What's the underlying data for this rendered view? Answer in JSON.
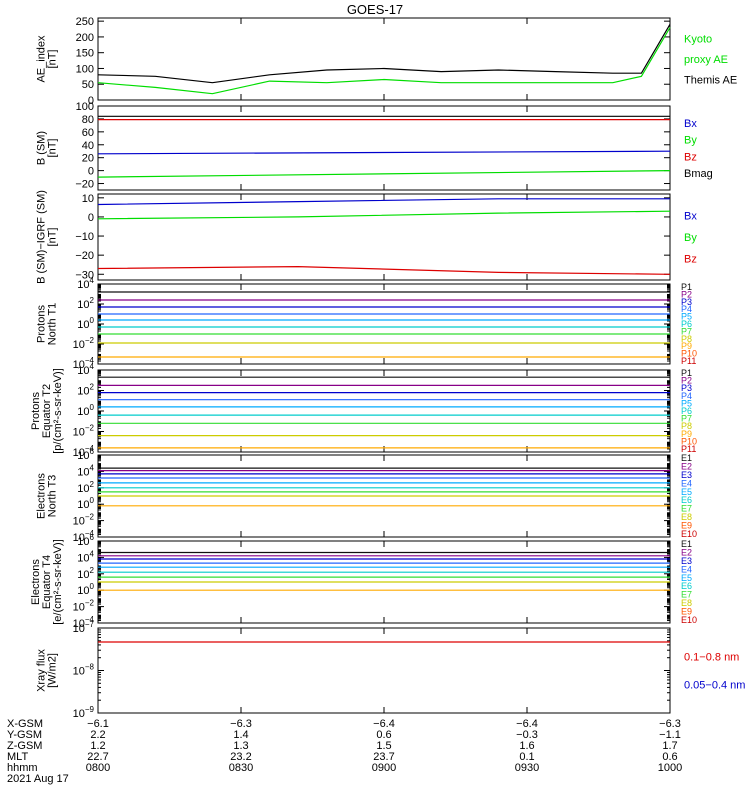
{
  "title": "GOES-17",
  "colors": {
    "black": "#000000",
    "green": "#00dd00",
    "blue": "#0000cc",
    "red": "#dd0000",
    "P1": "#111111",
    "P2": "#880088",
    "P3": "#0000cc",
    "P4": "#2266ff",
    "P5": "#00aaff",
    "P6": "#00cccc",
    "P7": "#33dd33",
    "P8": "#cccc00",
    "P9": "#ffaa00",
    "P10": "#ff5500",
    "P11": "#cc0000"
  },
  "chart_data": [
    {
      "type": "line",
      "ylabel": [
        "AE_index",
        "[nT]"
      ],
      "ylim": [
        0,
        260
      ],
      "yscale": "linear",
      "yticks": [
        "0",
        "50",
        "100",
        "150",
        "200",
        "250"
      ],
      "ytick_values": [
        0,
        50,
        100,
        150,
        200,
        250
      ],
      "x": [
        0,
        0.1,
        0.2,
        0.3,
        0.4,
        0.5,
        0.6,
        0.7,
        0.8,
        0.9,
        0.95,
        1
      ],
      "series": [
        {
          "name": "Kyoto proxy AE",
          "color": "green",
          "values": [
            55,
            40,
            20,
            60,
            55,
            65,
            55,
            55,
            55,
            55,
            75,
            230
          ]
        },
        {
          "name": "Themis AE",
          "color": "black",
          "values": [
            80,
            75,
            55,
            80,
            95,
            100,
            90,
            95,
            90,
            85,
            85,
            240
          ]
        }
      ],
      "legend": [
        {
          "text": "Kyoto",
          "color": "green"
        },
        {
          "text": "proxy AE",
          "color": "green"
        },
        {
          "text": "Themis AE",
          "color": "black"
        }
      ]
    },
    {
      "type": "line",
      "ylabel": [
        "B (SM)",
        "[nT]"
      ],
      "ylim": [
        -30,
        100
      ],
      "yscale": "linear",
      "yticks": [
        "−20",
        "0",
        "20",
        "40",
        "60",
        "80",
        "100"
      ],
      "ytick_values": [
        -20,
        0,
        20,
        40,
        60,
        80,
        100
      ],
      "x": [
        0,
        1
      ],
      "series": [
        {
          "name": "Bx",
          "color": "blue",
          "values": [
            26,
            30
          ]
        },
        {
          "name": "By",
          "color": "green",
          "values": [
            -10,
            0
          ]
        },
        {
          "name": "Bz",
          "color": "red",
          "values": [
            79,
            79
          ]
        },
        {
          "name": "Bmag",
          "color": "black",
          "values": [
            84,
            84
          ]
        }
      ],
      "legend": [
        {
          "text": "Bx",
          "color": "blue"
        },
        {
          "text": "By",
          "color": "green"
        },
        {
          "text": "Bz",
          "color": "red"
        },
        {
          "text": "Bmag",
          "color": "black"
        }
      ]
    },
    {
      "type": "line",
      "ylabel": [
        "B (SM)−IGRF (SM)",
        "[nT]"
      ],
      "ylim": [
        -33,
        12
      ],
      "yscale": "linear",
      "yticks": [
        "−30",
        "−20",
        "−10",
        "0",
        "10"
      ],
      "ytick_values": [
        -30,
        -20,
        -10,
        0,
        10
      ],
      "x": [
        0,
        0.35,
        0.7,
        1
      ],
      "series": [
        {
          "name": "Bx",
          "color": "blue",
          "values": [
            6.5,
            8,
            9.5,
            9.5
          ]
        },
        {
          "name": "By",
          "color": "green",
          "values": [
            -1,
            0,
            2,
            3
          ]
        },
        {
          "name": "Bz",
          "color": "red",
          "values": [
            -27,
            -26,
            -29,
            -30
          ]
        }
      ],
      "legend": [
        {
          "text": "Bx",
          "color": "blue"
        },
        {
          "text": "By",
          "color": "green"
        },
        {
          "text": "Bz",
          "color": "red"
        }
      ]
    },
    {
      "type": "line",
      "ylabel": [
        "Protons",
        "North T1"
      ],
      "ylim": [
        -4,
        4
      ],
      "yscale": "log",
      "yticks": [
        "10",
        "10",
        "10",
        "10",
        "10"
      ],
      "ytick_exps": [
        "−4",
        "−2",
        "0",
        "2",
        "4"
      ],
      "ytick_values": [
        -4,
        -2,
        0,
        2,
        4
      ],
      "x": [
        0,
        1
      ],
      "series": [
        {
          "name": "P1",
          "color": "P1",
          "values": [
            3.2,
            3.2
          ]
        },
        {
          "name": "P2",
          "color": "P2",
          "values": [
            2.4,
            2.4
          ]
        },
        {
          "name": "P3",
          "color": "P3",
          "values": [
            1.7,
            1.7
          ]
        },
        {
          "name": "P4",
          "color": "P4",
          "values": [
            1.0,
            1.0
          ]
        },
        {
          "name": "P5",
          "color": "P5",
          "values": [
            0.4,
            0.4
          ]
        },
        {
          "name": "P6",
          "color": "P6",
          "values": [
            -0.3,
            -0.3
          ]
        },
        {
          "name": "P7",
          "color": "P7",
          "values": [
            -1.0,
            -1.0
          ]
        },
        {
          "name": "P8",
          "color": "P8",
          "values": [
            -1.9,
            -1.9
          ]
        },
        {
          "name": "P9",
          "color": "P9",
          "values": [
            -3.3,
            -3.3
          ]
        }
      ],
      "legend": [
        {
          "text": "P1",
          "color": "P1"
        },
        {
          "text": "P2",
          "color": "P2"
        },
        {
          "text": "P3",
          "color": "P3"
        },
        {
          "text": "P4",
          "color": "P4"
        },
        {
          "text": "P5",
          "color": "P5"
        },
        {
          "text": "P6",
          "color": "P6"
        },
        {
          "text": "P7",
          "color": "P7"
        },
        {
          "text": "P8",
          "color": "P8"
        },
        {
          "text": "P9",
          "color": "P9"
        },
        {
          "text": "P10",
          "color": "P10"
        },
        {
          "text": "P11",
          "color": "P11"
        }
      ]
    },
    {
      "type": "line",
      "ylabel": [
        "Protons",
        "Equator T2",
        "[p/(cm²-s-sr-keV)]"
      ],
      "ylim": [
        -4,
        4
      ],
      "yscale": "log",
      "yticks": [
        "10",
        "10",
        "10",
        "10",
        "10"
      ],
      "ytick_exps": [
        "−4",
        "−2",
        "0",
        "2",
        "4"
      ],
      "ytick_values": [
        -4,
        -2,
        0,
        2,
        4
      ],
      "x": [
        0,
        1
      ],
      "series": [
        {
          "name": "P1",
          "color": "P1",
          "values": [
            3.3,
            3.3
          ]
        },
        {
          "name": "P2",
          "color": "P2",
          "values": [
            2.5,
            2.5
          ]
        },
        {
          "name": "P3",
          "color": "P3",
          "values": [
            1.8,
            1.8
          ]
        },
        {
          "name": "P4",
          "color": "P4",
          "values": [
            1.1,
            1.1
          ]
        },
        {
          "name": "P5",
          "color": "P5",
          "values": [
            0.4,
            0.4
          ]
        },
        {
          "name": "P6",
          "color": "P6",
          "values": [
            -0.4,
            -0.4
          ]
        },
        {
          "name": "P7",
          "color": "P7",
          "values": [
            -1.2,
            -1.2
          ]
        },
        {
          "name": "P8",
          "color": "P8",
          "values": [
            -2.4,
            -2.4
          ]
        },
        {
          "name": "P9",
          "color": "P9",
          "values": [
            -3.6,
            -3.6
          ]
        }
      ],
      "legend": [
        {
          "text": "P1",
          "color": "P1"
        },
        {
          "text": "P2",
          "color": "P2"
        },
        {
          "text": "P3",
          "color": "P3"
        },
        {
          "text": "P4",
          "color": "P4"
        },
        {
          "text": "P5",
          "color": "P5"
        },
        {
          "text": "P6",
          "color": "P6"
        },
        {
          "text": "P7",
          "color": "P7"
        },
        {
          "text": "P8",
          "color": "P8"
        },
        {
          "text": "P9",
          "color": "P9"
        },
        {
          "text": "P10",
          "color": "P10"
        },
        {
          "text": "P11",
          "color": "P11"
        }
      ]
    },
    {
      "type": "line",
      "ylabel": [
        "Electrons",
        "North T3"
      ],
      "ylim": [
        -4,
        6
      ],
      "yscale": "log",
      "yticks": [
        "10",
        "10",
        "10",
        "10",
        "10",
        "10"
      ],
      "ytick_exps": [
        "−4",
        "−2",
        "0",
        "2",
        "4",
        "6"
      ],
      "ytick_values": [
        -4,
        -2,
        0,
        2,
        4,
        6
      ],
      "x": [
        0,
        1
      ],
      "series": [
        {
          "name": "E1",
          "color": "P1",
          "values": [
            4.4,
            4.4
          ]
        },
        {
          "name": "E2",
          "color": "P2",
          "values": [
            4.1,
            4.1
          ]
        },
        {
          "name": "E3",
          "color": "P3",
          "values": [
            3.7,
            3.7
          ]
        },
        {
          "name": "E4",
          "color": "P4",
          "values": [
            3.2,
            3.2
          ]
        },
        {
          "name": "E5",
          "color": "P5",
          "values": [
            2.6,
            2.6
          ]
        },
        {
          "name": "E6",
          "color": "P6",
          "values": [
            2.0,
            2.0
          ]
        },
        {
          "name": "E7",
          "color": "P7",
          "values": [
            1.5,
            1.5
          ]
        },
        {
          "name": "E8",
          "color": "P8",
          "values": [
            1.0,
            1.0
          ]
        },
        {
          "name": "E9",
          "color": "P9",
          "values": [
            -0.2,
            -0.2
          ]
        }
      ],
      "legend": [
        {
          "text": "E1",
          "color": "P1"
        },
        {
          "text": "E2",
          "color": "P2"
        },
        {
          "text": "E3",
          "color": "P3"
        },
        {
          "text": "E4",
          "color": "P4"
        },
        {
          "text": "E5",
          "color": "P5"
        },
        {
          "text": "E6",
          "color": "P6"
        },
        {
          "text": "E7",
          "color": "P7"
        },
        {
          "text": "E8",
          "color": "P8"
        },
        {
          "text": "E9",
          "color": "P10"
        },
        {
          "text": "E10",
          "color": "P11"
        }
      ]
    },
    {
      "type": "line",
      "ylabel": [
        "Electrons",
        "Equator T4",
        "[e/(cm²-s-sr-keV)]"
      ],
      "ylim": [
        -4,
        6
      ],
      "yscale": "log",
      "yticks": [
        "10",
        "10",
        "10",
        "10",
        "10",
        "10"
      ],
      "ytick_exps": [
        "−4",
        "−2",
        "0",
        "2",
        "4",
        "6"
      ],
      "ytick_values": [
        -4,
        -2,
        0,
        2,
        4,
        6
      ],
      "x": [
        0,
        1
      ],
      "series": [
        {
          "name": "E1",
          "color": "P1",
          "values": [
            4.6,
            4.6
          ]
        },
        {
          "name": "E2",
          "color": "P2",
          "values": [
            4.2,
            4.2
          ]
        },
        {
          "name": "E3",
          "color": "P3",
          "values": [
            3.8,
            3.8
          ]
        },
        {
          "name": "E4",
          "color": "P4",
          "values": [
            3.3,
            3.3
          ]
        },
        {
          "name": "E5",
          "color": "P5",
          "values": [
            2.8,
            2.8
          ]
        },
        {
          "name": "E6",
          "color": "P6",
          "values": [
            2.2,
            2.2
          ]
        },
        {
          "name": "E7",
          "color": "P7",
          "values": [
            1.6,
            1.6
          ]
        },
        {
          "name": "E8",
          "color": "P8",
          "values": [
            1.0,
            1.0
          ]
        },
        {
          "name": "E9",
          "color": "P9",
          "values": [
            0.0,
            0.0
          ]
        }
      ],
      "legend": [
        {
          "text": "E1",
          "color": "P1"
        },
        {
          "text": "E2",
          "color": "P2"
        },
        {
          "text": "E3",
          "color": "P3"
        },
        {
          "text": "E4",
          "color": "P4"
        },
        {
          "text": "E5",
          "color": "P5"
        },
        {
          "text": "E6",
          "color": "P6"
        },
        {
          "text": "E7",
          "color": "P7"
        },
        {
          "text": "E8",
          "color": "P8"
        },
        {
          "text": "E9",
          "color": "P10"
        },
        {
          "text": "E10",
          "color": "P11"
        }
      ]
    },
    {
      "type": "line",
      "ylabel": [
        "Xray flux",
        "[W/m2]"
      ],
      "ylim": [
        -9,
        -7
      ],
      "yscale": "log",
      "yticks": [
        "10",
        "10",
        "10"
      ],
      "ytick_exps": [
        "−9",
        "−8",
        "−7"
      ],
      "ytick_values": [
        -9,
        -8,
        -7
      ],
      "x": [
        0,
        1
      ],
      "series": [
        {
          "name": "0.1-0.8 nm",
          "color": "red",
          "values": [
            -7.33,
            -7.33
          ]
        }
      ],
      "legend": [
        {
          "text": "0.1−0.8 nm",
          "color": "red"
        },
        {
          "text": "0.05−0.4 nm",
          "color": "blue"
        }
      ]
    }
  ],
  "x_axis": {
    "rows": [
      {
        "label": "X-GSM",
        "values": [
          "−6.1",
          "−6.3",
          "−6.4",
          "−6.4",
          "−6.3"
        ]
      },
      {
        "label": "Y-GSM",
        "values": [
          "2.2",
          "1.4",
          "0.6",
          "−0.3",
          "−1.1"
        ]
      },
      {
        "label": "Z-GSM",
        "values": [
          "1.2",
          "1.3",
          "1.5",
          "1.6",
          "1.7"
        ]
      },
      {
        "label": "MLT",
        "values": [
          "22.7",
          "23.2",
          "23.7",
          "0.1",
          "0.6"
        ]
      },
      {
        "label": "hhmm",
        "values": [
          "0800",
          "0830",
          "0900",
          "0930",
          "1000"
        ]
      }
    ],
    "date": "2021 Aug 17"
  }
}
